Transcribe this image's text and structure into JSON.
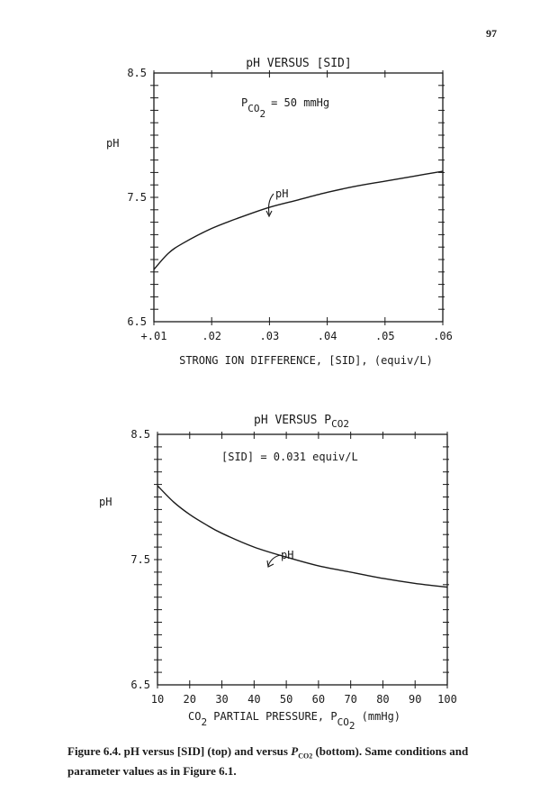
{
  "page_number": "97",
  "figure1": {
    "title": "pH VERSUS [SID]",
    "annotation_prefix": "P",
    "annotation_sub": "CO",
    "annotation_subsub": "2",
    "annotation_value": "= 50 mmHg",
    "ylabel": "pH",
    "curve_label": "pH",
    "xlabel": "STRONG ION DIFFERENCE, [SID], (equiv/L)"
  },
  "figure2": {
    "title_prefix": "pH VERSUS P",
    "title_sub": "CO2",
    "annotation": "[SID] = 0.031 equiv/L",
    "ylabel": "pH",
    "curve_label": "pH",
    "xlabel_prefix": "CO",
    "xlabel_sub": "2",
    "xlabel_middle": " PARTIAL PRESSURE, P",
    "xlabel_sub2": "CO",
    "xlabel_subsub2": "2",
    "xlabel_suffix": " (mmHg)"
  },
  "caption": {
    "lead": "Figure 6.4.",
    "text_a": " pH versus [SID] (top) and versus ",
    "p_sym": "P",
    "p_sub": "CO2",
    "text_b": " (bottom). Same conditions and parameter values as in Figure 6.1."
  },
  "chart_data": [
    {
      "type": "line",
      "title": "pH VERSUS [SID]",
      "xlabel": "STRONG ION DIFFERENCE, [SID], (equiv/L)",
      "ylabel": "pH",
      "xlim": [
        0.01,
        0.06
      ],
      "ylim": [
        6.5,
        8.5
      ],
      "x_ticks": [
        0.01,
        0.02,
        0.03,
        0.04,
        0.05,
        0.06
      ],
      "x_tick_labels": [
        "+.01",
        ".02",
        ".03",
        ".04",
        ".05",
        ".06"
      ],
      "y_ticks": [
        6.5,
        7.5,
        8.5
      ],
      "y_tick_labels": [
        "6.5",
        "7.5",
        "8.5"
      ],
      "series": [
        {
          "name": "pH",
          "x": [
            0.01,
            0.0125,
            0.015,
            0.02,
            0.025,
            0.03,
            0.035,
            0.04,
            0.045,
            0.05,
            0.055,
            0.06
          ],
          "y": [
            6.92,
            7.05,
            7.13,
            7.25,
            7.34,
            7.42,
            7.48,
            7.54,
            7.59,
            7.63,
            7.67,
            7.71
          ]
        }
      ]
    },
    {
      "type": "line",
      "title": "pH VERSUS PCO2",
      "xlabel": "CO2 PARTIAL PRESSURE, PCO2 (mmHg)",
      "ylabel": "pH",
      "xlim": [
        10,
        100
      ],
      "ylim": [
        6.5,
        8.5
      ],
      "x_ticks": [
        10,
        20,
        30,
        40,
        50,
        60,
        70,
        80,
        90,
        100
      ],
      "x_tick_labels": [
        "10",
        "20",
        "30",
        "40",
        "50",
        "60",
        "70",
        "80",
        "90",
        "100"
      ],
      "y_ticks": [
        6.5,
        7.5,
        8.5
      ],
      "y_tick_labels": [
        "6.5",
        "7.5",
        "8.5"
      ],
      "series": [
        {
          "name": "pH",
          "x": [
            10,
            15,
            20,
            25,
            30,
            40,
            50,
            60,
            70,
            80,
            90,
            100
          ],
          "y": [
            8.09,
            7.96,
            7.86,
            7.78,
            7.71,
            7.6,
            7.52,
            7.45,
            7.4,
            7.35,
            7.31,
            7.28
          ]
        }
      ]
    }
  ]
}
